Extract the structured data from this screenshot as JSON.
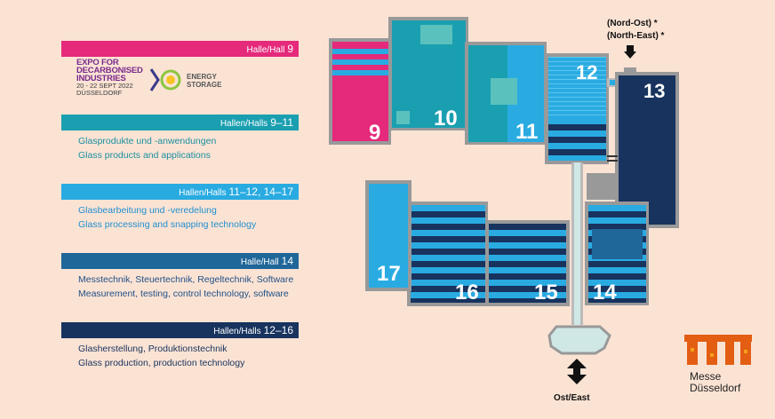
{
  "legend": [
    {
      "label": "Halle/Hall",
      "num": "9",
      "color": "#e5297b",
      "desc": []
    },
    {
      "label": "Hallen/Halls",
      "num": "9–11",
      "color": "#1a9fb0",
      "desc": [
        "Glasprodukte und -anwendungen",
        "Glass products and applications"
      ],
      "desc_color": "#1a8fa0"
    },
    {
      "label": "Hallen/Halls",
      "num": "11–12, 14–17",
      "color": "#29abe2",
      "desc": [
        "Glasbearbeitung und -veredelung",
        "Glass processing and snapping technology"
      ],
      "desc_color": "#1f8fcf"
    },
    {
      "label": "Halle/Hall",
      "num": "14",
      "color": "#1f6699",
      "desc": [
        "Messtechnik, Steuertechnik, Regeltechnik, Software",
        "Measurement, testing, control technology,  software"
      ],
      "desc_color": "#1f4f86"
    },
    {
      "label": "Hallen/Halls",
      "num": "12–16",
      "color": "#17335e",
      "desc": [
        "Glasherstellung, Produktionstechnik",
        "Glass production, production technology"
      ],
      "desc_color": "#17335e"
    }
  ],
  "expo": {
    "line1": "EXPO FOR",
    "line2": "DECARBONISED",
    "line3": "INDUSTRIES",
    "dates": "20 - 22 SEPT 2022",
    "city": "DÜSSELDORF",
    "energy1": "ENERGY",
    "energy2": "STORAGE"
  },
  "map": {
    "halls": [
      "9",
      "10",
      "11",
      "12",
      "13",
      "14",
      "15",
      "16",
      "17"
    ],
    "entrance_ne_de": "(Nord-Ost) *",
    "entrance_ne_en": "(North-East) *",
    "entrance_east": "Ost/East"
  },
  "logo": {
    "line1": "Messe",
    "line2": "Düsseldorf"
  }
}
